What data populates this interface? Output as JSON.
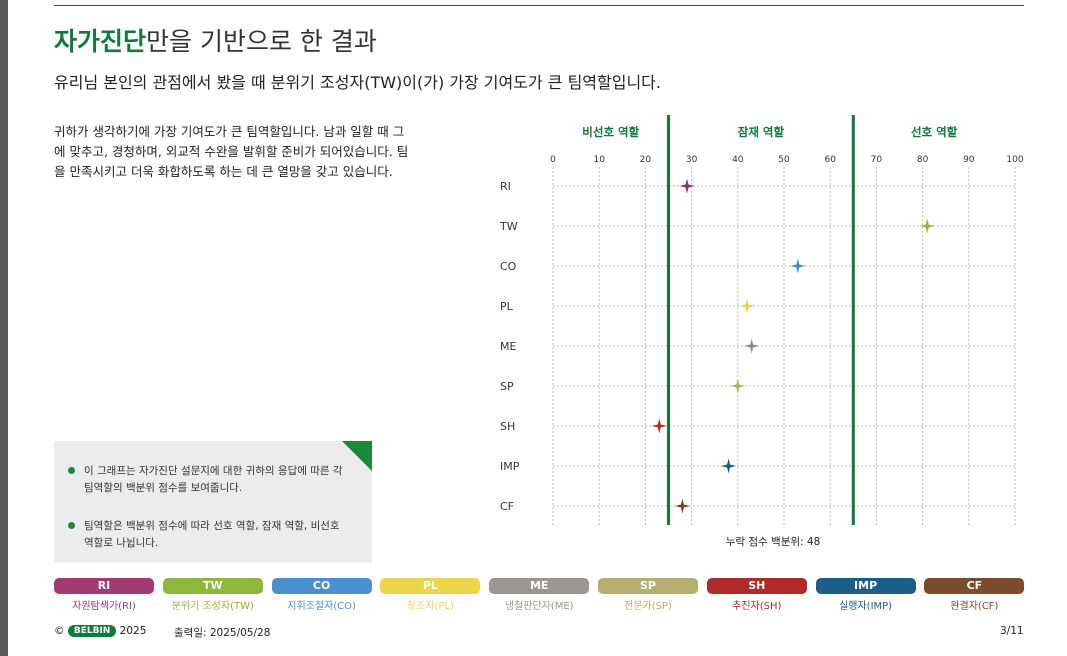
{
  "title": {
    "highlight": "자가진단",
    "rest": "만을 기반으로 한 결과"
  },
  "subtitle": "유리님 본인의 관점에서 봤을 때 분위기 조성자(TW)이(가) 가장 기여도가 큰 팀역할입니다.",
  "description": "귀하가 생각하기에 가장 기여도가 큰 팀역할입니다. 남과 일할 때 그에 맞추고, 경청하며, 외교적 수완을 발휘할 준비가 되어있습니다. 팀을 만족시키고 더욱 화합하도록 하는 데 큰 열망을 갖고 있습니다.",
  "notes": [
    "이 그래프는 자가진단 설문지에 대한 귀하의 응답에 따른 각 팀역할의 백분위 점수를 보여줍니다.",
    "팀역할은 백분위 점수에 따라 선호 역할, 잠재 역할, 비선호 역할로 나뉩니다."
  ],
  "chart_data": {
    "type": "scatter",
    "zones": [
      {
        "label": "비선호 역할",
        "from": 0,
        "to": 25
      },
      {
        "label": "잠재 역할",
        "from": 25,
        "to": 65
      },
      {
        "label": "선호 역할",
        "from": 65,
        "to": 100
      }
    ],
    "boundaries": [
      25,
      65
    ],
    "xlim": [
      0,
      100
    ],
    "xticks": [
      0,
      10,
      20,
      30,
      40,
      50,
      60,
      70,
      80,
      90,
      100
    ],
    "categories": [
      "RI",
      "TW",
      "CO",
      "PL",
      "ME",
      "SP",
      "SH",
      "IMP",
      "CF"
    ],
    "values": [
      29,
      81,
      53,
      42,
      43,
      40,
      23,
      38,
      28
    ],
    "colors": [
      "#8e2e72",
      "#8db83a",
      "#3f8fd2",
      "#e8d23a",
      "#8f8a84",
      "#b7ad6a",
      "#b02a26",
      "#0e5e88",
      "#7a4426"
    ],
    "grid": true,
    "cumulative_label": "누락 점수 백분위: 48"
  },
  "roles": [
    {
      "code": "RI",
      "name": "자원탐색가(RI)",
      "color": "#a33b72"
    },
    {
      "code": "TW",
      "name": "분위기 조성자(TW)",
      "color": "#8db83a"
    },
    {
      "code": "CO",
      "name": "지휘조절자(CO)",
      "color": "#4a90d0"
    },
    {
      "code": "PL",
      "name": "창조자(PL)",
      "color": "#ecd54a"
    },
    {
      "code": "ME",
      "name": "냉철판단자(ME)",
      "color": "#9b9690"
    },
    {
      "code": "SP",
      "name": "전문가(SP)",
      "color": "#b6ae6e"
    },
    {
      "code": "SH",
      "name": "추진자(SH)",
      "color": "#b02a26"
    },
    {
      "code": "IMP",
      "name": "실행자(IMP)",
      "color": "#1a5e8a"
    },
    {
      "code": "CF",
      "name": "완결자(CF)",
      "color": "#7d4a2e"
    }
  ],
  "footer": {
    "copyright": "©",
    "brand": "BELBIN",
    "year": "2025",
    "printed": "출력일: 2025/05/28",
    "page": "3/11"
  }
}
